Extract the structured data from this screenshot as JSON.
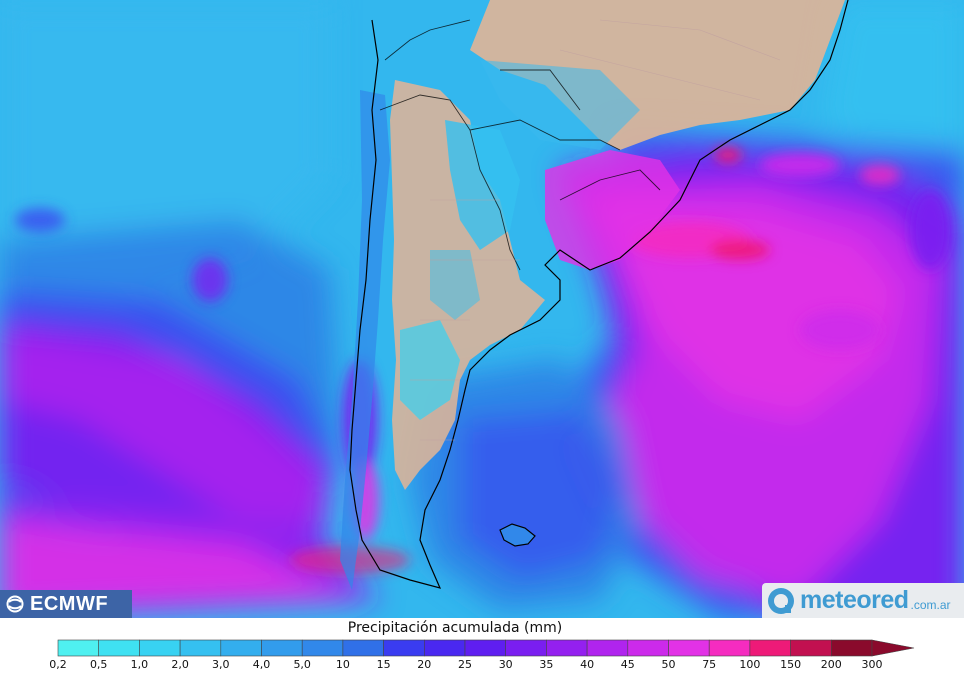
{
  "map": {
    "title": "Precipitación acumulada (mm)",
    "colors": {
      "ocean_light": "#33b7ee",
      "ocean_mid": "#2f82e6",
      "ocean_blue": "#3b4cf0",
      "violet": "#7a1ef0",
      "magenta": "#e832e8",
      "hot_pink": "#ff1e8c",
      "land_dry": "#d9b49a",
      "border": "#000000"
    }
  },
  "logos": {
    "ecmwf": "ECMWF",
    "meteored_brand": "meteored",
    "meteored_domain": ".com.ar"
  },
  "legend": {
    "title": "Precipitación acumulada (mm)",
    "ticks": [
      "0,2",
      "0,5",
      "1,0",
      "2,0",
      "3,0",
      "4,0",
      "5,0",
      "10",
      "15",
      "20",
      "25",
      "30",
      "35",
      "40",
      "45",
      "50",
      "75",
      "100",
      "150",
      "200",
      "300"
    ],
    "bins": [
      {
        "from": "0,2",
        "to": "0,5",
        "color": "#4ff0f0"
      },
      {
        "from": "0,5",
        "to": "1,0",
        "color": "#3fe1f2"
      },
      {
        "from": "1,0",
        "to": "2,0",
        "color": "#38d2f2"
      },
      {
        "from": "2,0",
        "to": "3,0",
        "color": "#35c0f0"
      },
      {
        "from": "3,0",
        "to": "4,0",
        "color": "#33aeee"
      },
      {
        "from": "4,0",
        "to": "5,0",
        "color": "#329cec"
      },
      {
        "from": "5,0",
        "to": "10",
        "color": "#3188ea"
      },
      {
        "from": "10",
        "to": "15",
        "color": "#3070e8"
      },
      {
        "from": "15",
        "to": "20",
        "color": "#3a3cf0"
      },
      {
        "from": "20",
        "to": "25",
        "color": "#4a28f0"
      },
      {
        "from": "25",
        "to": "30",
        "color": "#5f1ef0"
      },
      {
        "from": "30",
        "to": "35",
        "color": "#7a1ef0"
      },
      {
        "from": "35",
        "to": "40",
        "color": "#9420ef"
      },
      {
        "from": "40",
        "to": "45",
        "color": "#b024ee"
      },
      {
        "from": "45",
        "to": "50",
        "color": "#cc2aeb"
      },
      {
        "from": "50",
        "to": "75",
        "color": "#e232e6"
      },
      {
        "from": "75",
        "to": "100",
        "color": "#f52cc0"
      },
      {
        "from": "100",
        "to": "150",
        "color": "#ee1a78"
      },
      {
        "from": "150",
        "to": "200",
        "color": "#c21050"
      },
      {
        "from": "200",
        "to": "300",
        "color": "#8a0a2c"
      }
    ]
  }
}
